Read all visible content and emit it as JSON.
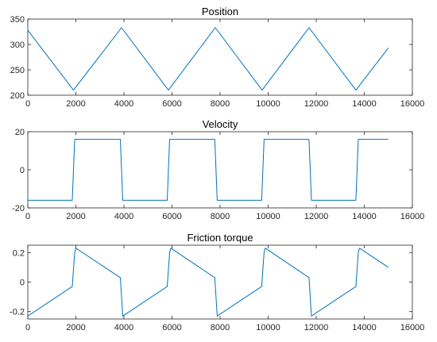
{
  "chart_data": [
    {
      "type": "line",
      "title": "Position",
      "xlabel": "",
      "ylabel": "",
      "xlim": [
        0,
        16000
      ],
      "ylim": [
        200,
        350
      ],
      "xticks": [
        0,
        2000,
        4000,
        6000,
        8000,
        10000,
        12000,
        14000,
        16000
      ],
      "yticks": [
        200,
        250,
        300,
        350
      ],
      "grid": false,
      "color": "#0072BD",
      "series": [
        {
          "x": [
            0,
            1900,
            3900,
            5850,
            7800,
            9750,
            11700,
            13650,
            15000
          ],
          "y": [
            328,
            210,
            333,
            210,
            333,
            210,
            333,
            210,
            293
          ]
        }
      ]
    },
    {
      "type": "line",
      "title": "Velocity",
      "xlabel": "",
      "ylabel": "",
      "xlim": [
        0,
        16000
      ],
      "ylim": [
        -20,
        20
      ],
      "xticks": [
        0,
        2000,
        4000,
        6000,
        8000,
        10000,
        12000,
        14000,
        16000
      ],
      "yticks": [
        -20,
        0,
        20
      ],
      "grid": false,
      "color": "#0072BD",
      "series": [
        {
          "x": [
            0,
            1850,
            1950,
            3850,
            3950,
            5800,
            5900,
            7780,
            7880,
            9730,
            9830,
            11700,
            11800,
            13650,
            13750,
            15000
          ],
          "y": [
            -16,
            -16,
            16,
            16,
            -16,
            -16,
            16,
            16,
            -16,
            -16,
            16,
            16,
            -16,
            -16,
            16,
            16
          ]
        }
      ]
    },
    {
      "type": "line",
      "title": "Friction torque",
      "xlabel": "",
      "ylabel": "",
      "xlim": [
        0,
        16000
      ],
      "ylim": [
        -0.25,
        0.25
      ],
      "xticks": [
        0,
        2000,
        4000,
        6000,
        8000,
        10000,
        12000,
        14000,
        16000
      ],
      "yticks": [
        -0.2,
        0,
        0.2
      ],
      "grid": false,
      "color": "#0072BD",
      "series": [
        {
          "x": [
            0,
            1850,
            1950,
            2000,
            3850,
            3950,
            5800,
            5900,
            5950,
            7780,
            7880,
            9730,
            9830,
            9880,
            11700,
            11800,
            13650,
            13750,
            13800,
            15000
          ],
          "y": [
            -0.23,
            -0.03,
            0.2,
            0.23,
            0.03,
            -0.23,
            -0.03,
            0.2,
            0.23,
            0.03,
            -0.23,
            -0.03,
            0.2,
            0.23,
            0.03,
            -0.23,
            -0.03,
            0.2,
            0.23,
            0.1
          ]
        }
      ]
    }
  ]
}
